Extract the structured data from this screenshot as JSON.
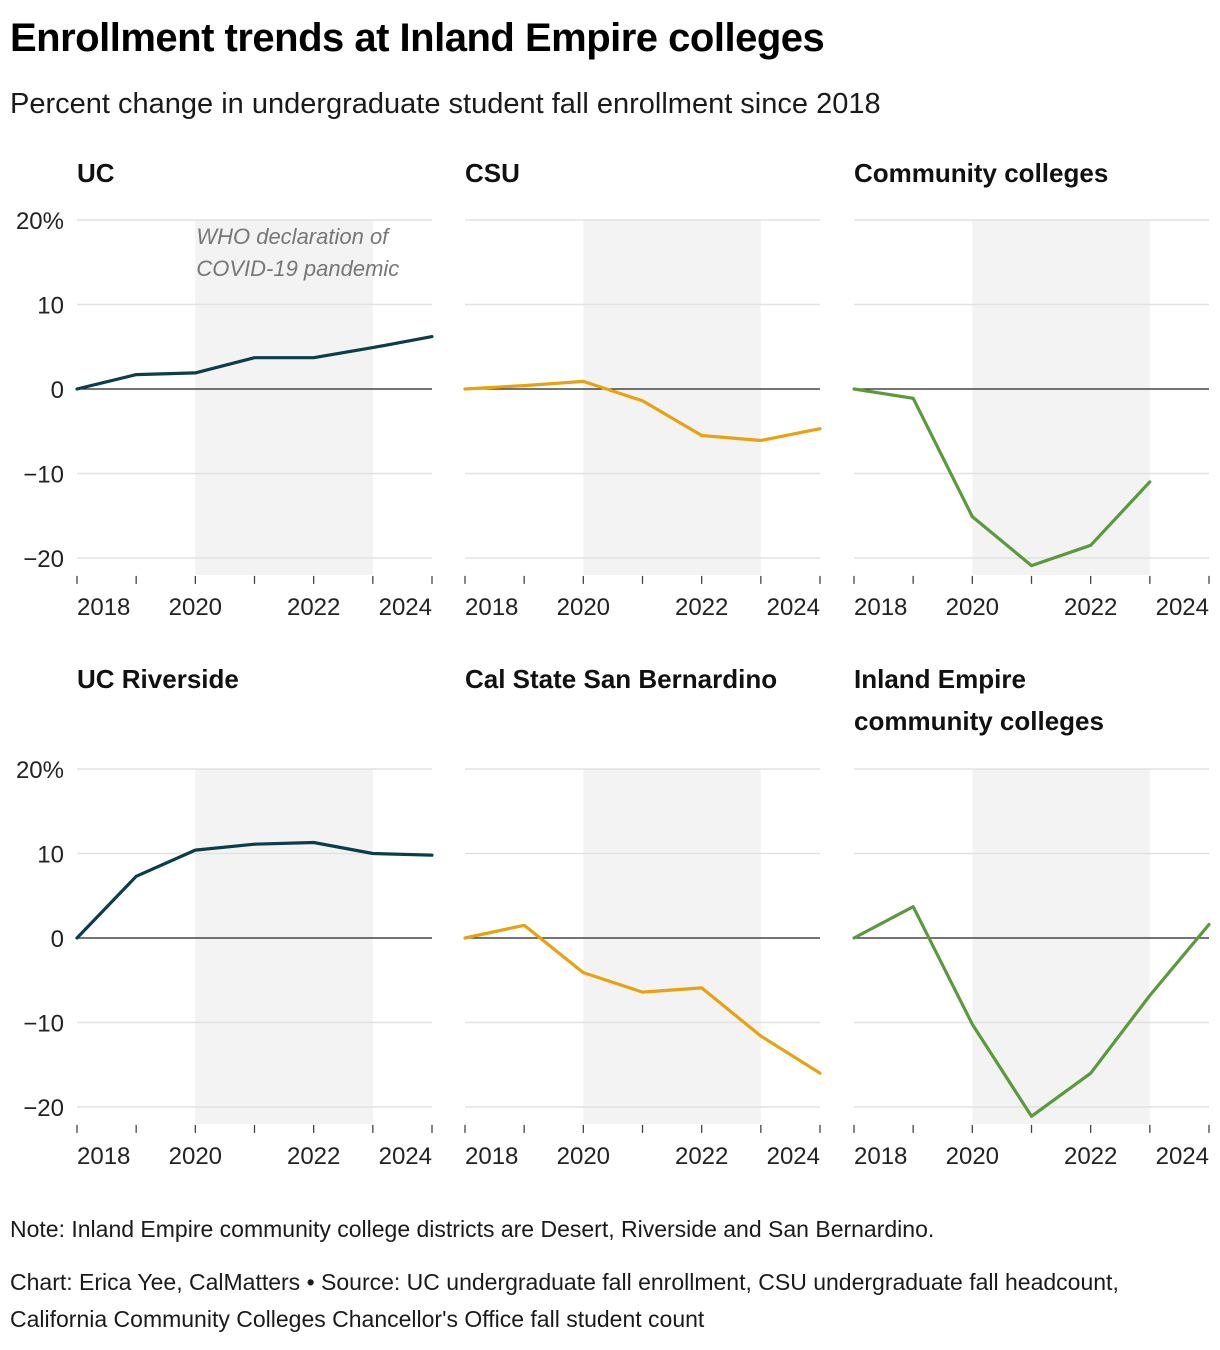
{
  "title": "Enrollment trends at Inland Empire colleges",
  "subtitle": "Percent change in undergraduate student fall enrollment since 2018",
  "note": "Note: Inland Empire community college districts are Desert, Riverside and San Bernardino.",
  "credit": "Chart: Erica Yee, CalMatters • Source: UC undergraduate fall enrollment, CSU undergraduate fall headcount, California Community Colleges Chancellor's Office fall student count",
  "colors": {
    "uc": "#0b3d4b",
    "csu": "#e8a20f",
    "cc": "#5a9a3c",
    "shade": "#f3f3f3",
    "grid": "#e2e2e2",
    "zero": "#222222"
  },
  "chart_data": {
    "type": "line",
    "x_ticks": [
      2018,
      2020,
      2022,
      2024
    ],
    "y_ticks": [
      20,
      10,
      0,
      -10,
      -20
    ],
    "y_tick_labels": [
      "20%",
      "10",
      "0",
      "−10",
      "−20"
    ],
    "ylim": [
      -22,
      20
    ],
    "xlim": [
      2018,
      2024
    ],
    "highlight": {
      "x_start": 2020,
      "x_end": 2023,
      "label": [
        "WHO declaration of",
        "COVID-19 pandemic"
      ]
    },
    "panels": [
      {
        "title": [
          "UC"
        ],
        "color": "uc",
        "x": [
          2018,
          2019,
          2020,
          2021,
          2022,
          2023,
          2024
        ],
        "values": [
          0,
          1.7,
          1.9,
          3.7,
          3.7,
          4.9,
          6.2
        ]
      },
      {
        "title": [
          "CSU"
        ],
        "color": "csu",
        "x": [
          2018,
          2019,
          2020,
          2021,
          2022,
          2023,
          2024
        ],
        "values": [
          0,
          0.4,
          0.9,
          -1.4,
          -5.5,
          -6.1,
          -4.7
        ]
      },
      {
        "title": [
          "Community colleges"
        ],
        "color": "cc",
        "x": [
          2018,
          2019,
          2020,
          2021,
          2022,
          2023
        ],
        "values": [
          0,
          -1.1,
          -15.1,
          -20.9,
          -18.5,
          -11.0
        ]
      },
      {
        "title": [
          "UC Riverside"
        ],
        "color": "uc",
        "x": [
          2018,
          2019,
          2020,
          2021,
          2022,
          2023,
          2024
        ],
        "values": [
          0,
          7.3,
          10.4,
          11.1,
          11.3,
          10.0,
          9.8
        ]
      },
      {
        "title": [
          "Cal State San Bernardino"
        ],
        "color": "csu",
        "x": [
          2018,
          2019,
          2020,
          2021,
          2022,
          2023,
          2024
        ],
        "values": [
          0,
          1.5,
          -4.1,
          -6.4,
          -5.9,
          -11.6,
          -16.0
        ]
      },
      {
        "title": [
          "Inland Empire",
          "community colleges"
        ],
        "color": "cc",
        "x": [
          2018,
          2019,
          2020,
          2021,
          2022,
          2023,
          2024
        ],
        "values": [
          0,
          3.7,
          -10.2,
          -21.1,
          -16.0,
          -6.8,
          1.6
        ]
      }
    ]
  }
}
